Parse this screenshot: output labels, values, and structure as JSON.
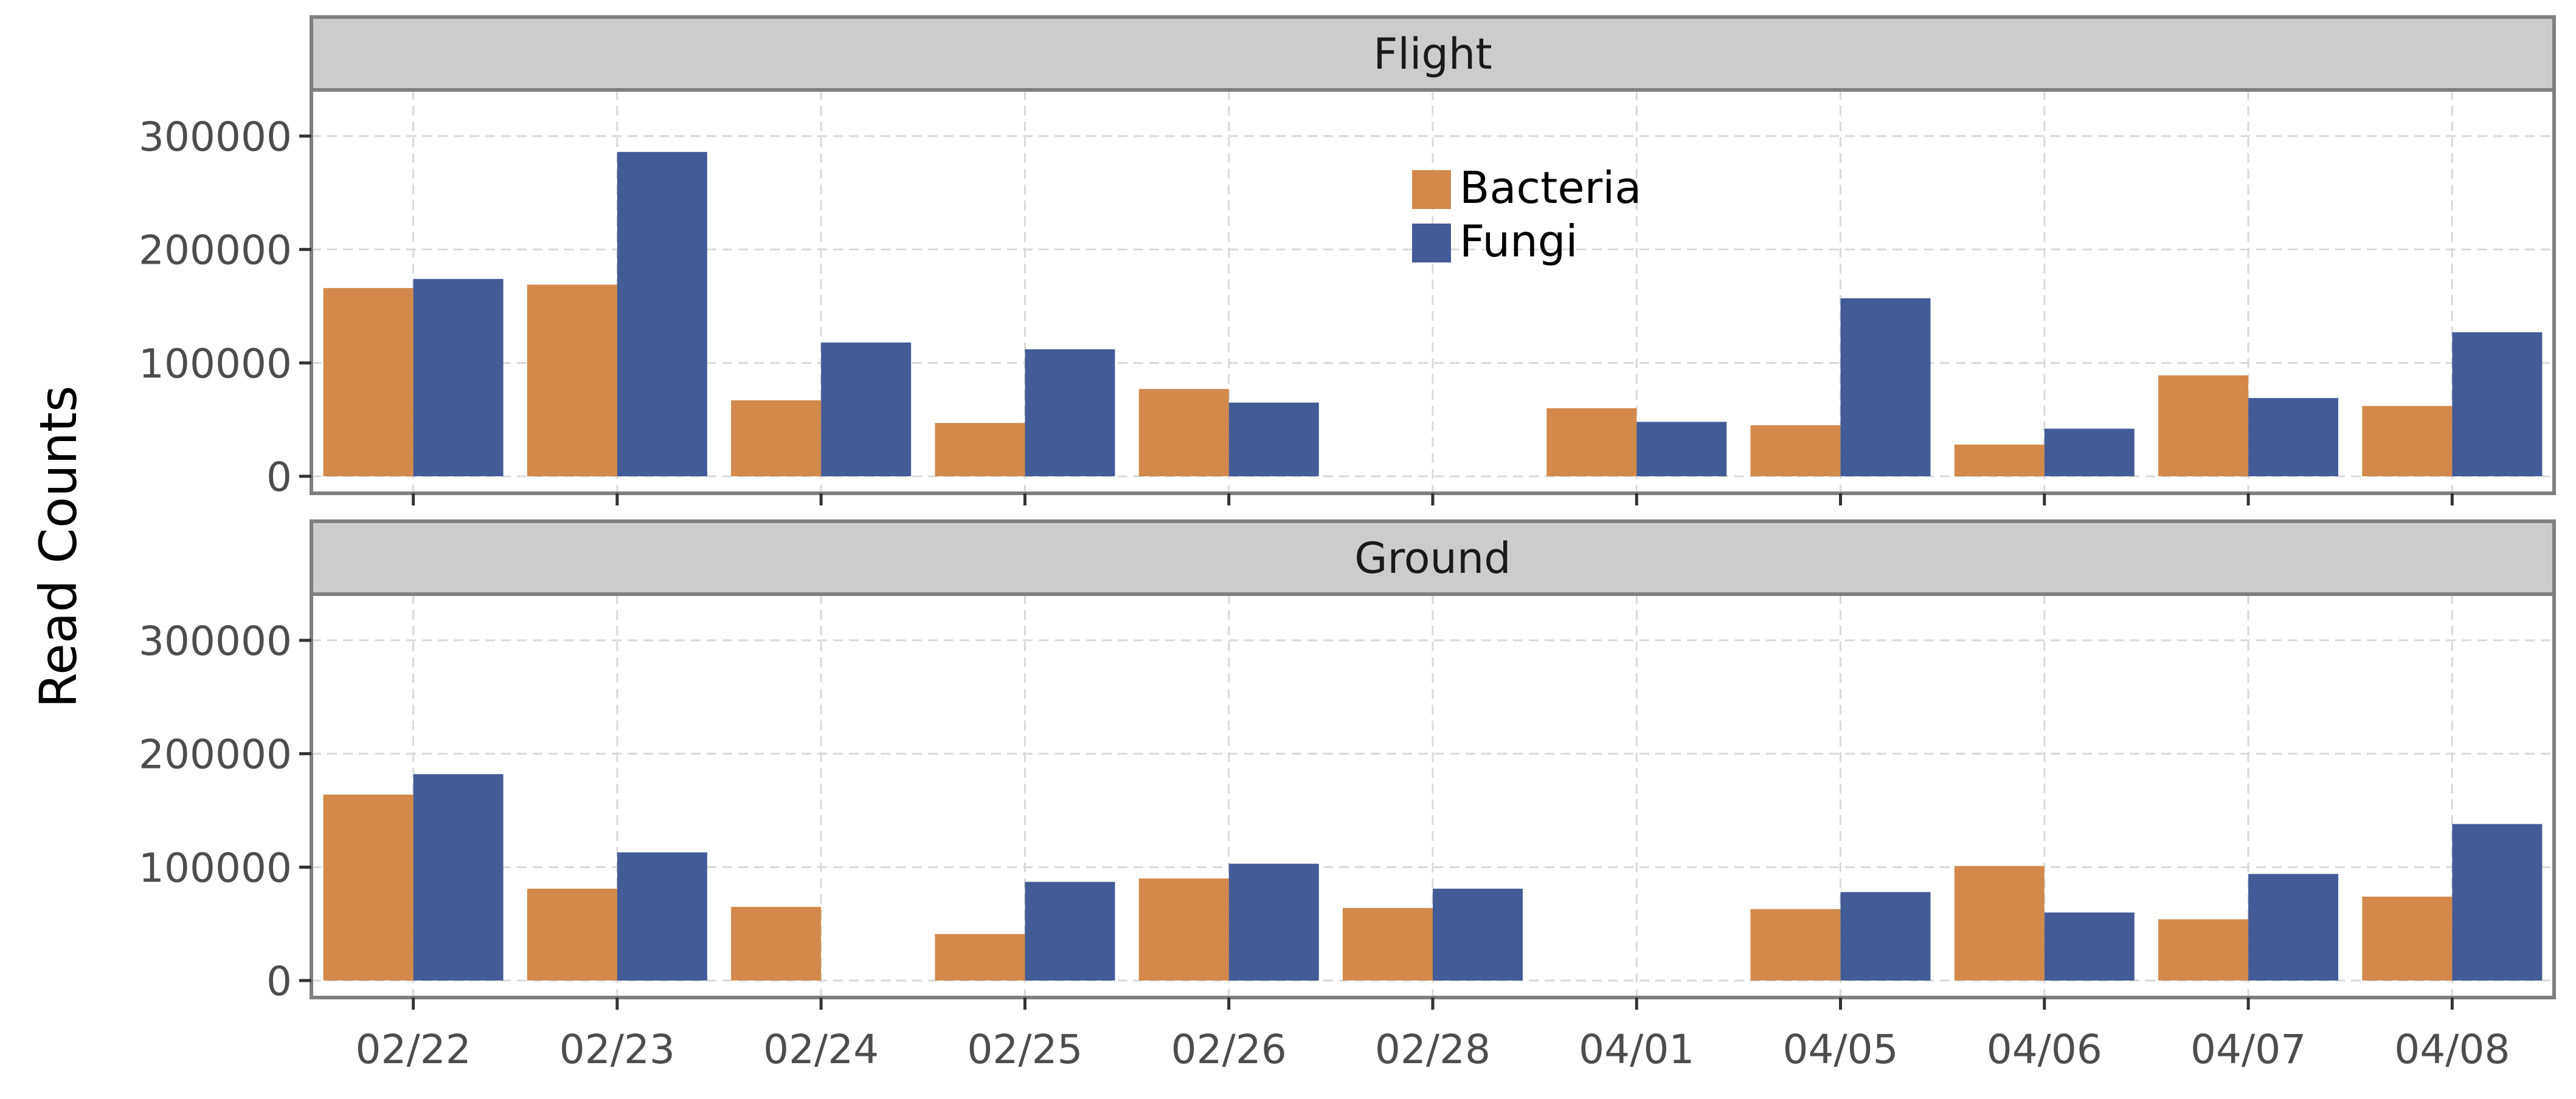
{
  "chart_data": {
    "type": "bar",
    "ylabel": "Read Counts",
    "xlabel": "",
    "categories": [
      "02/22",
      "02/23",
      "02/24",
      "02/25",
      "02/26",
      "02/28",
      "04/01",
      "04/05",
      "04/06",
      "04/07",
      "04/08"
    ],
    "ylim": [
      0,
      330000
    ],
    "yticks": [
      0,
      100000,
      200000,
      300000
    ],
    "ytick_labels": [
      "0",
      "100000",
      "200000",
      "300000"
    ],
    "grid": true,
    "legend": {
      "position": "inside-top-center of Flight panel",
      "entries": [
        {
          "name": "Bacteria",
          "color": "#D2894B"
        },
        {
          "name": "Fungi",
          "color": "#435B97"
        }
      ]
    },
    "panels": [
      {
        "title": "Flight",
        "series": [
          {
            "name": "Bacteria",
            "values": [
              166000,
              169000,
              67000,
              47000,
              77000,
              0,
              60000,
              45000,
              28000,
              89000,
              62000
            ]
          },
          {
            "name": "Fungi",
            "values": [
              174000,
              286000,
              118000,
              112000,
              65000,
              0,
              48000,
              157000,
              42000,
              69000,
              127000
            ]
          }
        ]
      },
      {
        "title": "Ground",
        "series": [
          {
            "name": "Bacteria",
            "values": [
              164000,
              81000,
              65000,
              41000,
              90000,
              64000,
              0,
              63000,
              101000,
              54000,
              74000
            ]
          },
          {
            "name": "Fungi",
            "values": [
              182000,
              113000,
              0,
              87000,
              103000,
              81000,
              0,
              78000,
              60000,
              94000,
              138000
            ]
          }
        ]
      }
    ]
  }
}
